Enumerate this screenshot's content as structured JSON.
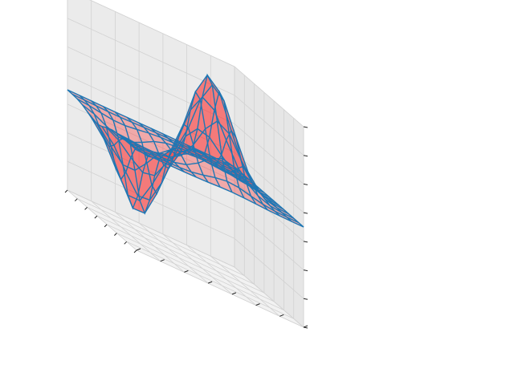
{
  "chart_data": {
    "type": "surface-3d",
    "title": "",
    "xlabel": "",
    "ylabel": "",
    "zlabel": "",
    "x_ticks_labeled": false,
    "y_ticks_labeled": false,
    "z_ticks_labeled": false,
    "grid": true,
    "legend": "none",
    "x_range": [
      -3,
      3
    ],
    "y_range": [
      -3,
      3
    ],
    "z_range": [
      -1,
      1
    ],
    "grid_lines": 15,
    "tick_count": 8,
    "surface_peaks": [
      {
        "x": 1,
        "y": 0.5,
        "z": 1.0
      },
      {
        "x": -0.5,
        "y": -1.5,
        "z": -0.8
      }
    ],
    "series": [
      {
        "kind": "filled-surface",
        "color": "#ff0000",
        "alpha": 0.28
      },
      {
        "kind": "wireframe",
        "color": "#1f77b4"
      }
    ]
  }
}
